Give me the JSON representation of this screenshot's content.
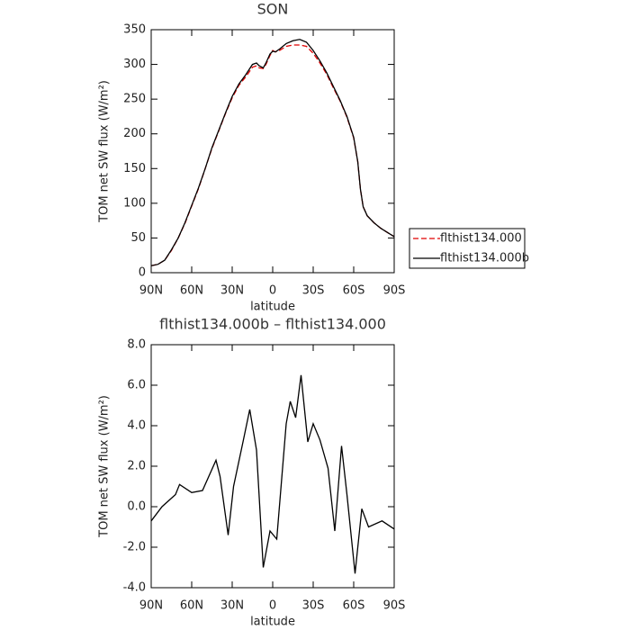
{
  "chart_data": [
    {
      "type": "line",
      "title": "SON",
      "xlabel": "latitude",
      "ylabel": "TOM net SW flux (W/m²)",
      "x": [
        90,
        85,
        80,
        75,
        70,
        65,
        60,
        55,
        50,
        45,
        40,
        35,
        30,
        25,
        20,
        15,
        12,
        10,
        7,
        5,
        2,
        0,
        -2,
        -5,
        -10,
        -15,
        -20,
        -25,
        -30,
        -35,
        -40,
        -45,
        -50,
        -55,
        -60,
        -63,
        -65,
        -67,
        -70,
        -75,
        -80,
        -85,
        -90
      ],
      "series": [
        {
          "name": "flthist134.000",
          "color": "#e00000",
          "linestyle": "dashed",
          "values": [
            10,
            12,
            18,
            32,
            50,
            71,
            96,
            121,
            150,
            179,
            204,
            229,
            252,
            270,
            282,
            296,
            298,
            295,
            294,
            300,
            313,
            320,
            318,
            320,
            326,
            328,
            328,
            326,
            316,
            302,
            286,
            266,
            247,
            224,
            194,
            160,
            120,
            95,
            82,
            72,
            64,
            58,
            52
          ]
        },
        {
          "name": "flthist134.000b",
          "color": "#000000",
          "linestyle": "solid",
          "values": [
            10,
            12,
            18,
            33,
            50,
            72,
            97,
            122,
            150,
            180,
            205,
            230,
            254,
            272,
            285,
            300,
            302,
            298,
            295,
            302,
            315,
            319,
            318,
            322,
            330,
            334,
            336,
            332,
            320,
            305,
            288,
            268,
            248,
            225,
            195,
            160,
            120,
            95,
            82,
            72,
            64,
            58,
            52
          ]
        }
      ],
      "xlim": [
        90,
        -90
      ],
      "xticks": [
        {
          "value": 90,
          "label": "90N"
        },
        {
          "value": 60,
          "label": "60N"
        },
        {
          "value": 30,
          "label": "30N"
        },
        0,
        {
          "value": -30,
          "label": "30S"
        },
        {
          "value": -60,
          "label": "60S"
        },
        {
          "value": -90,
          "label": "90S"
        }
      ],
      "ylim": [
        0,
        350
      ],
      "yticks": [
        0,
        50,
        100,
        150,
        200,
        250,
        300,
        350
      ],
      "legend": "right"
    },
    {
      "type": "line",
      "title": "flthist134.000b – flthist134.000",
      "xlabel": "latitude",
      "ylabel": "TOM net SW flux (W/m²)",
      "x": [
        90,
        82,
        72,
        69,
        60,
        52,
        42,
        39,
        33,
        29,
        22,
        17,
        12,
        7,
        2,
        -3,
        -10,
        -13,
        -17,
        -21,
        -26,
        -30,
        -35,
        -41,
        -46,
        -51,
        -55,
        -61,
        -66,
        -71,
        -81,
        -90
      ],
      "series": [
        {
          "color": "#000000",
          "linestyle": "solid",
          "values": [
            -0.7,
            0,
            0.6,
            1.1,
            0.7,
            0.8,
            2.3,
            1.5,
            -1.4,
            1.0,
            3.2,
            4.8,
            2.8,
            -3.0,
            -1.2,
            -1.6,
            4.1,
            5.2,
            4.4,
            6.5,
            3.2,
            4.1,
            3.3,
            1.9,
            -1.2,
            3.0,
            0.6,
            -3.3,
            -0.1,
            -1.0,
            -0.7,
            -1.1
          ]
        }
      ],
      "xlim": [
        90,
        -90
      ],
      "xticks": [
        {
          "value": 90,
          "label": "90N"
        },
        {
          "value": 60,
          "label": "60N"
        },
        {
          "value": 30,
          "label": "30N"
        },
        0,
        {
          "value": -30,
          "label": "30S"
        },
        {
          "value": -60,
          "label": "60S"
        },
        {
          "value": -90,
          "label": "90S"
        }
      ],
      "ylim": [
        -4,
        8
      ],
      "yticks": [
        {
          "value": -4,
          "label": "-4.0"
        },
        {
          "value": -2,
          "label": "-2.0"
        },
        {
          "value": 0,
          "label": "0.0"
        },
        {
          "value": 2,
          "label": "2.0"
        },
        {
          "value": 4,
          "label": "4.0"
        },
        {
          "value": 6,
          "label": "6.0"
        },
        {
          "value": 8,
          "label": "8.0"
        }
      ]
    }
  ]
}
